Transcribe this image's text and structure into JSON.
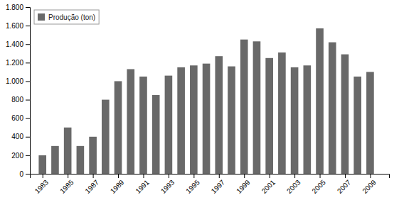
{
  "chart_data": {
    "type": "bar",
    "x": [
      1983,
      1984,
      1985,
      1986,
      1987,
      1988,
      1989,
      1990,
      1991,
      1992,
      1993,
      1994,
      1995,
      1996,
      1997,
      1998,
      1999,
      2000,
      2001,
      2002,
      2003,
      2004,
      2005,
      2006,
      2007,
      2008,
      2009
    ],
    "series": [
      {
        "name": "Produção (ton)",
        "color": "#696969",
        "values": [
          200,
          300,
          500,
          300,
          400,
          800,
          1000,
          1130,
          1050,
          850,
          1060,
          1150,
          1170,
          1190,
          1270,
          1160,
          1450,
          1430,
          1250,
          1310,
          1150,
          1170,
          1570,
          1420,
          1290,
          1050,
          1100
        ]
      }
    ],
    "xlim": [
      1982.0,
      2010.5
    ],
    "xticks": [
      1983,
      1985,
      1987,
      1989,
      1991,
      1993,
      1995,
      1997,
      1999,
      2001,
      2003,
      2005,
      2007,
      2009
    ],
    "ylim": [
      0,
      1800
    ],
    "yticks": [
      0,
      200,
      400,
      600,
      800,
      {
        "value": 1000,
        "label": "1.000"
      },
      {
        "value": 1200,
        "label": "1.200"
      },
      {
        "value": 1400,
        "label": "1.400"
      },
      {
        "value": 1600,
        "label": "1.600"
      },
      {
        "value": 1800,
        "label": "1.800"
      }
    ],
    "grid": false,
    "legend": "upper-left"
  }
}
